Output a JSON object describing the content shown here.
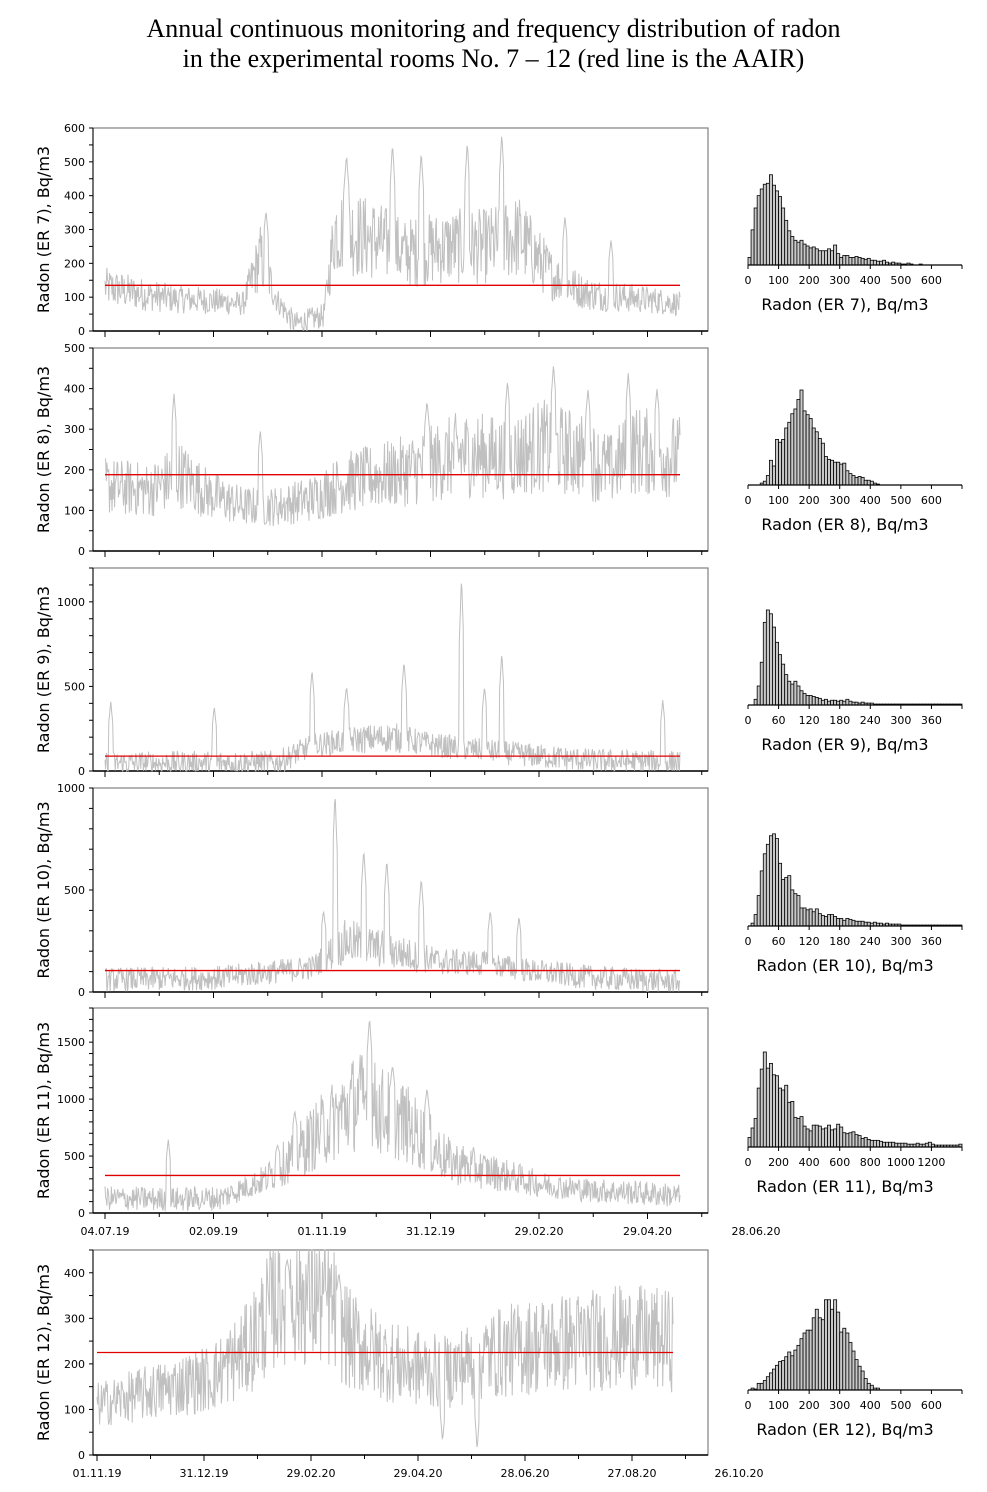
{
  "title": {
    "line1": "Annual continuous monitoring and frequency distribution of radon",
    "line2": "in the experimental rooms No. 7 – 12 (red line is the AAIR)"
  },
  "colors": {
    "series": "#c0c0c0",
    "aair": "#e00000",
    "hist_fill": "#c8c8c8",
    "hist_edge": "#000000",
    "frame": "#808080"
  },
  "chart_data": [
    {
      "type": "line",
      "room": "ER 7",
      "ylabel": "Radon (ER 7), Bq/m3",
      "ylim": [
        0,
        600
      ],
      "yticks": [
        0,
        100,
        200,
        300,
        400,
        500,
        600
      ],
      "xticks": [
        "04.07.19",
        "02.09.19",
        "01.11.19",
        "31.12.19",
        "29.02.20",
        "29.04.20",
        "28.06.20"
      ],
      "xtick_labels_shown": false,
      "aair": 135,
      "profile": [
        [
          0,
          130
        ],
        [
          0.06,
          110
        ],
        [
          0.12,
          95
        ],
        [
          0.18,
          90
        ],
        [
          0.24,
          80
        ],
        [
          0.27,
          220
        ],
        [
          0.3,
          90
        ],
        [
          0.33,
          20
        ],
        [
          0.35,
          30
        ],
        [
          0.38,
          45
        ],
        [
          0.4,
          300
        ],
        [
          0.47,
          270
        ],
        [
          0.52,
          230
        ],
        [
          0.6,
          250
        ],
        [
          0.66,
          250
        ],
        [
          0.72,
          280
        ],
        [
          0.78,
          160
        ],
        [
          0.84,
          110
        ],
        [
          0.9,
          100
        ],
        [
          0.96,
          90
        ],
        [
          1,
          80
        ]
      ],
      "peaks": [
        [
          0.28,
          355
        ],
        [
          0.42,
          520
        ],
        [
          0.5,
          555
        ],
        [
          0.55,
          530
        ],
        [
          0.63,
          560
        ],
        [
          0.69,
          585
        ],
        [
          0.8,
          340
        ],
        [
          0.88,
          270
        ]
      ]
    },
    {
      "type": "line",
      "room": "ER 8",
      "ylabel": "Radon (ER 8), Bq/m3",
      "ylim": [
        0,
        500
      ],
      "yticks": [
        0,
        100,
        200,
        300,
        400,
        500
      ],
      "xticks": [
        "04.07.19",
        "02.09.19",
        "01.11.19",
        "31.12.19",
        "29.02.20",
        "29.04.20",
        "28.06.20"
      ],
      "xtick_labels_shown": false,
      "aair": 188,
      "profile": [
        [
          0,
          160
        ],
        [
          0.08,
          150
        ],
        [
          0.13,
          190
        ],
        [
          0.18,
          140
        ],
        [
          0.24,
          110
        ],
        [
          0.3,
          110
        ],
        [
          0.36,
          130
        ],
        [
          0.42,
          170
        ],
        [
          0.5,
          190
        ],
        [
          0.56,
          210
        ],
        [
          0.62,
          240
        ],
        [
          0.7,
          230
        ],
        [
          0.76,
          260
        ],
        [
          0.82,
          240
        ],
        [
          0.88,
          200
        ],
        [
          0.92,
          250
        ],
        [
          1,
          230
        ]
      ],
      "peaks": [
        [
          0.12,
          390
        ],
        [
          0.27,
          300
        ],
        [
          0.56,
          370
        ],
        [
          0.7,
          420
        ],
        [
          0.78,
          460
        ],
        [
          0.84,
          400
        ],
        [
          0.91,
          440
        ],
        [
          0.96,
          400
        ]
      ]
    },
    {
      "type": "line",
      "room": "ER 9",
      "ylabel": "Radon (ER 9), Bq/m3",
      "ylim": [
        0,
        1200
      ],
      "yticks": [
        0,
        500,
        1000
      ],
      "xticks": [
        "04.07.19",
        "02.09.19",
        "01.11.19",
        "31.12.19",
        "29.02.20",
        "29.04.20",
        "28.06.20"
      ],
      "xtick_labels_shown": false,
      "aair": 88,
      "profile": [
        [
          0,
          45
        ],
        [
          0.3,
          50
        ],
        [
          0.36,
          150
        ],
        [
          0.42,
          180
        ],
        [
          0.5,
          200
        ],
        [
          0.58,
          150
        ],
        [
          0.66,
          120
        ],
        [
          0.75,
          90
        ],
        [
          0.85,
          60
        ],
        [
          1,
          50
        ]
      ],
      "peaks": [
        [
          0.01,
          410
        ],
        [
          0.19,
          380
        ],
        [
          0.36,
          600
        ],
        [
          0.42,
          500
        ],
        [
          0.52,
          650
        ],
        [
          0.62,
          1150
        ],
        [
          0.69,
          700
        ],
        [
          0.66,
          500
        ],
        [
          0.97,
          420
        ]
      ]
    },
    {
      "type": "line",
      "room": "ER 10",
      "ylabel": "Radon (ER 10), Bq/m3",
      "ylim": [
        0,
        1000
      ],
      "yticks": [
        0,
        500,
        1000
      ],
      "xticks": [
        "04.07.19",
        "02.09.19",
        "01.11.19",
        "31.12.19",
        "29.02.20",
        "29.04.20",
        "28.06.20"
      ],
      "xtick_labels_shown": false,
      "aair": 105,
      "profile": [
        [
          0,
          60
        ],
        [
          0.2,
          70
        ],
        [
          0.36,
          120
        ],
        [
          0.42,
          250
        ],
        [
          0.5,
          200
        ],
        [
          0.58,
          150
        ],
        [
          0.66,
          140
        ],
        [
          0.75,
          100
        ],
        [
          0.85,
          70
        ],
        [
          1,
          50
        ]
      ],
      "peaks": [
        [
          0.4,
          980
        ],
        [
          0.45,
          700
        ],
        [
          0.49,
          650
        ],
        [
          0.55,
          560
        ],
        [
          0.67,
          400
        ],
        [
          0.72,
          370
        ],
        [
          0.38,
          400
        ]
      ]
    },
    {
      "type": "line",
      "room": "ER 11",
      "ylabel": "Radon (ER 11), Bq/m3",
      "ylim": [
        0,
        1800
      ],
      "yticks": [
        0,
        500,
        1000,
        1500
      ],
      "xticks": [
        "04.07.19",
        "02.09.19",
        "01.11.19",
        "31.12.19",
        "29.02.20",
        "29.04.20",
        "28.06.20"
      ],
      "xtick_labels_shown": true,
      "aair": 330,
      "profile": [
        [
          0,
          130
        ],
        [
          0.12,
          120
        ],
        [
          0.2,
          130
        ],
        [
          0.28,
          300
        ],
        [
          0.36,
          650
        ],
        [
          0.44,
          1000
        ],
        [
          0.52,
          800
        ],
        [
          0.6,
          450
        ],
        [
          0.68,
          350
        ],
        [
          0.76,
          250
        ],
        [
          0.84,
          200
        ],
        [
          0.92,
          180
        ],
        [
          1,
          150
        ]
      ],
      "peaks": [
        [
          0.11,
          650
        ],
        [
          0.3,
          600
        ],
        [
          0.46,
          1720
        ],
        [
          0.5,
          1300
        ],
        [
          0.56,
          1100
        ],
        [
          0.33,
          900
        ]
      ]
    },
    {
      "type": "line",
      "room": "ER 12",
      "ylabel": "Radon (ER 12), Bq/m3",
      "ylim": [
        0,
        450
      ],
      "yticks": [
        0,
        100,
        200,
        300,
        400
      ],
      "xticks": [
        "01.11.19",
        "31.12.19",
        "29.02.20",
        "29.04.20",
        "28.06.20",
        "27.08.20",
        "26.10.20"
      ],
      "xtick_labels_shown": true,
      "aair": 225,
      "profile": [
        [
          0,
          110
        ],
        [
          0.1,
          140
        ],
        [
          0.2,
          170
        ],
        [
          0.26,
          230
        ],
        [
          0.32,
          360
        ],
        [
          0.4,
          340
        ],
        [
          0.44,
          250
        ],
        [
          0.52,
          200
        ],
        [
          0.6,
          180
        ],
        [
          0.68,
          220
        ],
        [
          0.76,
          240
        ],
        [
          0.84,
          250
        ],
        [
          0.92,
          260
        ],
        [
          1,
          250
        ]
      ],
      "peaks": [
        [
          0.33,
          430
        ],
        [
          0.42,
          400
        ],
        [
          0.6,
          30
        ],
        [
          0.66,
          10
        ]
      ]
    }
  ],
  "histograms": [
    {
      "type": "bar",
      "room": "ER 7",
      "xlabel": "Radon (ER 7), Bq/m3",
      "xlim": [
        0,
        700
      ],
      "xticks": [
        0,
        100,
        200,
        300,
        400,
        500,
        600
      ],
      "bin_width": 10,
      "relative_counts": [
        0.08,
        0.37,
        0.6,
        0.73,
        0.8,
        0.85,
        0.86,
        0.95,
        0.84,
        0.78,
        0.72,
        0.6,
        0.47,
        0.36,
        0.3,
        0.26,
        0.24,
        0.26,
        0.22,
        0.2,
        0.18,
        0.19,
        0.17,
        0.15,
        0.15,
        0.15,
        0.17,
        0.15,
        0.21,
        0.12,
        0.08,
        0.1,
        0.1,
        0.08,
        0.08,
        0.09,
        0.08,
        0.07,
        0.06,
        0.07,
        0.05,
        0.05,
        0.04,
        0.04,
        0.05,
        0.03,
        0.02,
        0.03,
        0.02,
        0.02,
        0.01,
        0.01,
        0.02,
        0.01,
        0.0,
        0.0,
        0.01
      ]
    },
    {
      "type": "bar",
      "room": "ER 8",
      "xlabel": "Radon (ER 8), Bq/m3",
      "xlim": [
        0,
        700
      ],
      "xticks": [
        0,
        100,
        200,
        300,
        400,
        500,
        600
      ],
      "bin_width": 10,
      "relative_counts": [
        0,
        0,
        0,
        0,
        0.02,
        0.04,
        0.1,
        0.26,
        0.2,
        0.48,
        0.45,
        0.48,
        0.6,
        0.66,
        0.75,
        0.8,
        0.9,
        1.0,
        0.78,
        0.74,
        0.7,
        0.6,
        0.56,
        0.49,
        0.44,
        0.3,
        0.27,
        0.26,
        0.24,
        0.24,
        0.22,
        0.23,
        0.15,
        0.12,
        0.1,
        0.08,
        0.09,
        0.08,
        0.05,
        0.05,
        0.04,
        0.02,
        0.01
      ]
    },
    {
      "type": "bar",
      "room": "ER 9",
      "xlabel": "Radon (ER 9), Bq/m3",
      "xlim": [
        0,
        420
      ],
      "xticks": [
        0,
        60,
        120,
        180,
        240,
        300,
        360
      ],
      "bin_width": 6,
      "relative_counts": [
        0,
        0,
        0.06,
        0.2,
        0.45,
        0.87,
        1.0,
        0.96,
        0.82,
        0.66,
        0.53,
        0.43,
        0.32,
        0.25,
        0.22,
        0.25,
        0.2,
        0.15,
        0.12,
        0.1,
        0.1,
        0.09,
        0.08,
        0.07,
        0.05,
        0.06,
        0.04,
        0.05,
        0.05,
        0.04,
        0.05,
        0.04,
        0.06,
        0.04,
        0.03,
        0.03,
        0.02,
        0.03,
        0.02,
        0.02,
        0.02,
        0.01,
        0.01,
        0.01,
        0.01,
        0.01,
        0.01,
        0.01,
        0.01,
        0.01,
        0.01,
        0.01,
        0.01,
        0.01,
        0.01,
        0.01,
        0.01,
        0.01,
        0.01,
        0.01,
        0.01,
        0.01,
        0.01,
        0.01,
        0.01,
        0.01,
        0.01,
        0.01,
        0.01,
        0.01
      ]
    },
    {
      "type": "bar",
      "room": "ER 10",
      "xlabel": "Radon (ER 10), Bq/m3",
      "xlim": [
        0,
        420
      ],
      "xticks": [
        0,
        60,
        120,
        180,
        240,
        300,
        360
      ],
      "bin_width": 6,
      "relative_counts": [
        0,
        0.03,
        0.12,
        0.32,
        0.58,
        0.76,
        0.86,
        0.95,
        0.97,
        0.92,
        0.66,
        0.49,
        0.51,
        0.53,
        0.38,
        0.34,
        0.32,
        0.19,
        0.19,
        0.17,
        0.18,
        0.15,
        0.18,
        0.13,
        0.11,
        0.1,
        0.12,
        0.12,
        0.1,
        0.08,
        0.08,
        0.06,
        0.08,
        0.07,
        0.06,
        0.05,
        0.05,
        0.05,
        0.04,
        0.04,
        0.03,
        0.04,
        0.03,
        0.03,
        0.02,
        0.03,
        0.02,
        0.02,
        0.02,
        0.02,
        0.01,
        0.01,
        0.01,
        0.01,
        0.01,
        0.01,
        0.01,
        0.01,
        0.01,
        0.01,
        0.01,
        0.01,
        0.01,
        0.01,
        0.01,
        0.01,
        0.01,
        0.01,
        0.01,
        0.01
      ]
    },
    {
      "type": "bar",
      "room": "ER 11",
      "xlabel": "Radon (ER 11), Bq/m3",
      "xlim": [
        0,
        1400
      ],
      "xticks": [
        0,
        200,
        400,
        600,
        800,
        1000,
        1200
      ],
      "bin_width": 20,
      "relative_counts": [
        0.1,
        0.2,
        0.3,
        0.62,
        0.82,
        1.0,
        0.83,
        0.88,
        0.76,
        0.75,
        0.62,
        0.6,
        0.65,
        0.47,
        0.48,
        0.31,
        0.3,
        0.32,
        0.22,
        0.19,
        0.17,
        0.23,
        0.23,
        0.22,
        0.19,
        0.2,
        0.23,
        0.18,
        0.19,
        0.24,
        0.21,
        0.15,
        0.14,
        0.15,
        0.16,
        0.13,
        0.12,
        0.09,
        0.1,
        0.08,
        0.07,
        0.07,
        0.07,
        0.06,
        0.05,
        0.05,
        0.05,
        0.05,
        0.04,
        0.04,
        0.04,
        0.04,
        0.03,
        0.03,
        0.03,
        0.04,
        0.03,
        0.03,
        0.04,
        0.05,
        0.03,
        0.02,
        0.02,
        0.02,
        0.02,
        0.02,
        0.02,
        0.02,
        0.02,
        0.03
      ]
    },
    {
      "type": "bar",
      "room": "ER 12",
      "xlabel": "Radon (ER 12), Bq/m3",
      "xlim": [
        0,
        700
      ],
      "xticks": [
        0,
        100,
        200,
        300,
        400,
        500,
        600
      ],
      "bin_width": 10,
      "relative_counts": [
        0,
        0.02,
        0.01,
        0.07,
        0.07,
        0.1,
        0.14,
        0.18,
        0.22,
        0.26,
        0.3,
        0.31,
        0.35,
        0.4,
        0.36,
        0.42,
        0.47,
        0.54,
        0.6,
        0.63,
        0.63,
        0.76,
        0.85,
        0.76,
        0.74,
        0.95,
        0.95,
        0.85,
        0.95,
        0.82,
        0.61,
        0.65,
        0.6,
        0.5,
        0.41,
        0.32,
        0.25,
        0.2,
        0.12,
        0.07,
        0.05,
        0.02,
        0.02
      ]
    }
  ]
}
